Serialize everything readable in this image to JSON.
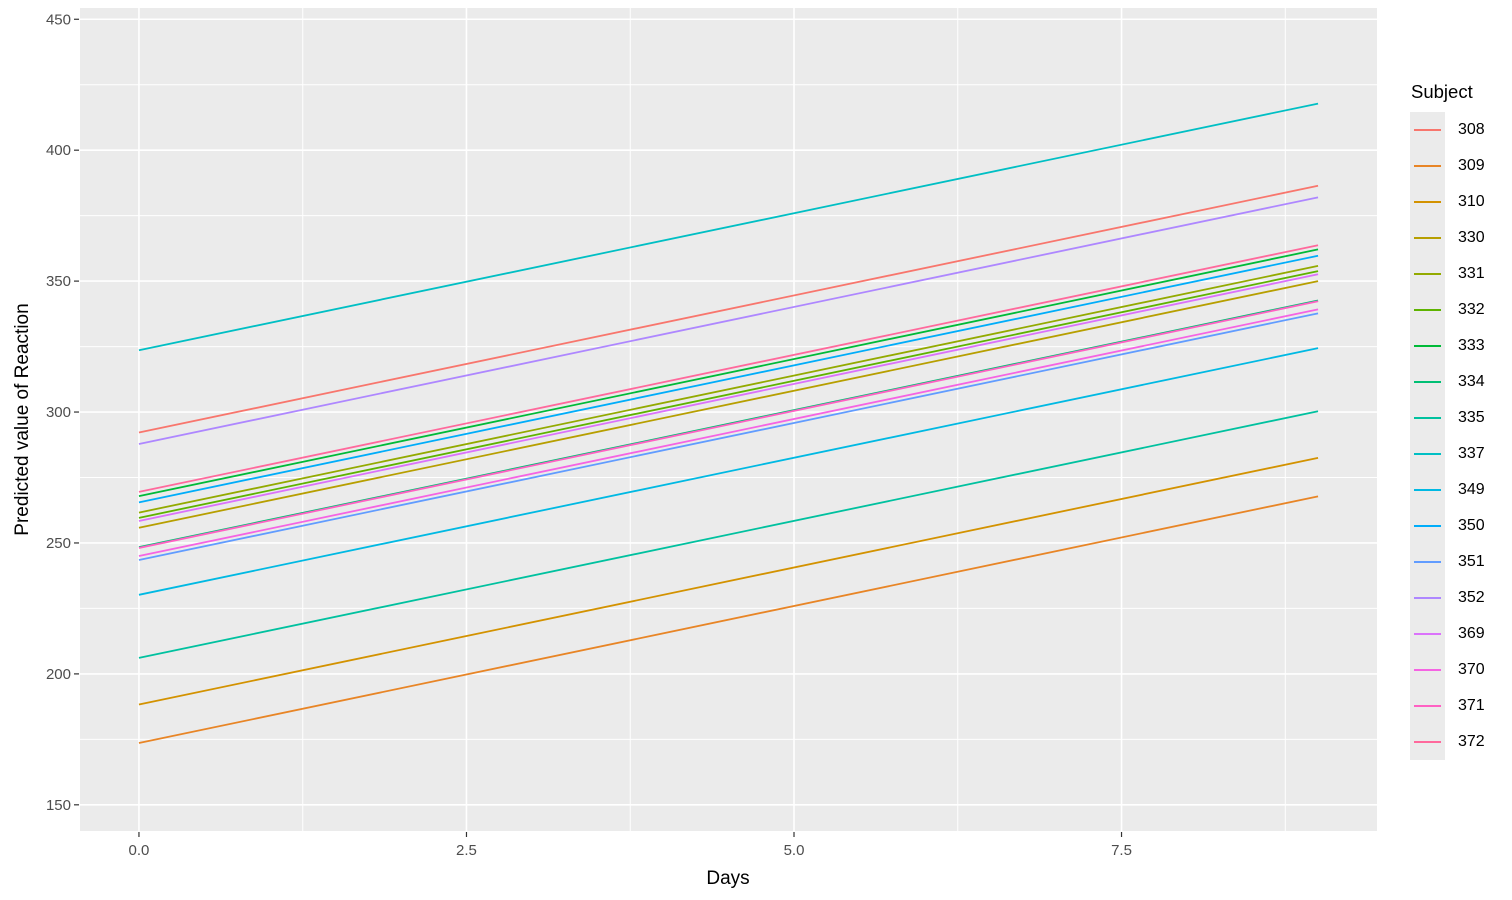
{
  "chart_data": {
    "type": "line",
    "title": "",
    "xlabel": "Days",
    "ylabel": "Predicted value of Reaction",
    "legend_title": "Subject",
    "legend_position": "right",
    "x": [
      0,
      9
    ],
    "xlim": [
      -0.45,
      9.45
    ],
    "ylim": [
      140,
      454.3
    ],
    "x_major_ticks": [
      0,
      2.5,
      5,
      7.5
    ],
    "x_tick_labels": [
      "0.0",
      "2.5",
      "5.0",
      "7.5"
    ],
    "x_minor_ticks": [
      1.25,
      3.75,
      6.25,
      8.75
    ],
    "y_major_ticks": [
      150,
      200,
      250,
      300,
      350,
      400,
      450
    ],
    "y_tick_labels": [
      "150",
      "200",
      "250",
      "300",
      "350",
      "400",
      "450"
    ],
    "y_minor_ticks": [
      175,
      225,
      275,
      325,
      375,
      425
    ],
    "grid": true,
    "series": [
      {
        "name": "308",
        "color": "#F8766D",
        "values": [
          292.2,
          386.4
        ]
      },
      {
        "name": "309",
        "color": "#E88526",
        "values": [
          173.6,
          267.8
        ]
      },
      {
        "name": "310",
        "color": "#D39200",
        "values": [
          188.3,
          282.5
        ]
      },
      {
        "name": "330",
        "color": "#B79F00",
        "values": [
          255.8,
          350.0
        ]
      },
      {
        "name": "331",
        "color": "#93AA00",
        "values": [
          261.6,
          355.8
        ]
      },
      {
        "name": "332",
        "color": "#5EB300",
        "values": [
          259.6,
          353.8
        ]
      },
      {
        "name": "333",
        "color": "#00BA38",
        "values": [
          267.9,
          362.1
        ]
      },
      {
        "name": "334",
        "color": "#00BF74",
        "values": [
          248.4,
          342.6
        ]
      },
      {
        "name": "335",
        "color": "#00C19F",
        "values": [
          206.1,
          300.3
        ]
      },
      {
        "name": "337",
        "color": "#00BFC4",
        "values": [
          323.6,
          417.8
        ]
      },
      {
        "name": "349",
        "color": "#00B9E3",
        "values": [
          230.2,
          324.4
        ]
      },
      {
        "name": "350",
        "color": "#00ADFA",
        "values": [
          265.5,
          359.7
        ]
      },
      {
        "name": "351",
        "color": "#619CFF",
        "values": [
          243.5,
          337.7
        ]
      },
      {
        "name": "352",
        "color": "#AE87FF",
        "values": [
          287.8,
          382.0
        ]
      },
      {
        "name": "369",
        "color": "#DB72FB",
        "values": [
          258.4,
          352.6
        ]
      },
      {
        "name": "370",
        "color": "#F564E3",
        "values": [
          245.0,
          339.2
        ]
      },
      {
        "name": "371",
        "color": "#FF61C3",
        "values": [
          248.1,
          342.3
        ]
      },
      {
        "name": "372",
        "color": "#FF699C",
        "values": [
          269.5,
          363.7
        ]
      }
    ]
  },
  "style": {
    "panel_bg": "#EBEBEB",
    "grid_color": "#FFFFFF",
    "tick_color": "#333333",
    "tick_label_color": "#4D4D4D",
    "axis_title_color": "#000000",
    "legend_key_bg": "#EBEBEB",
    "legend_text_color": "#000000"
  }
}
